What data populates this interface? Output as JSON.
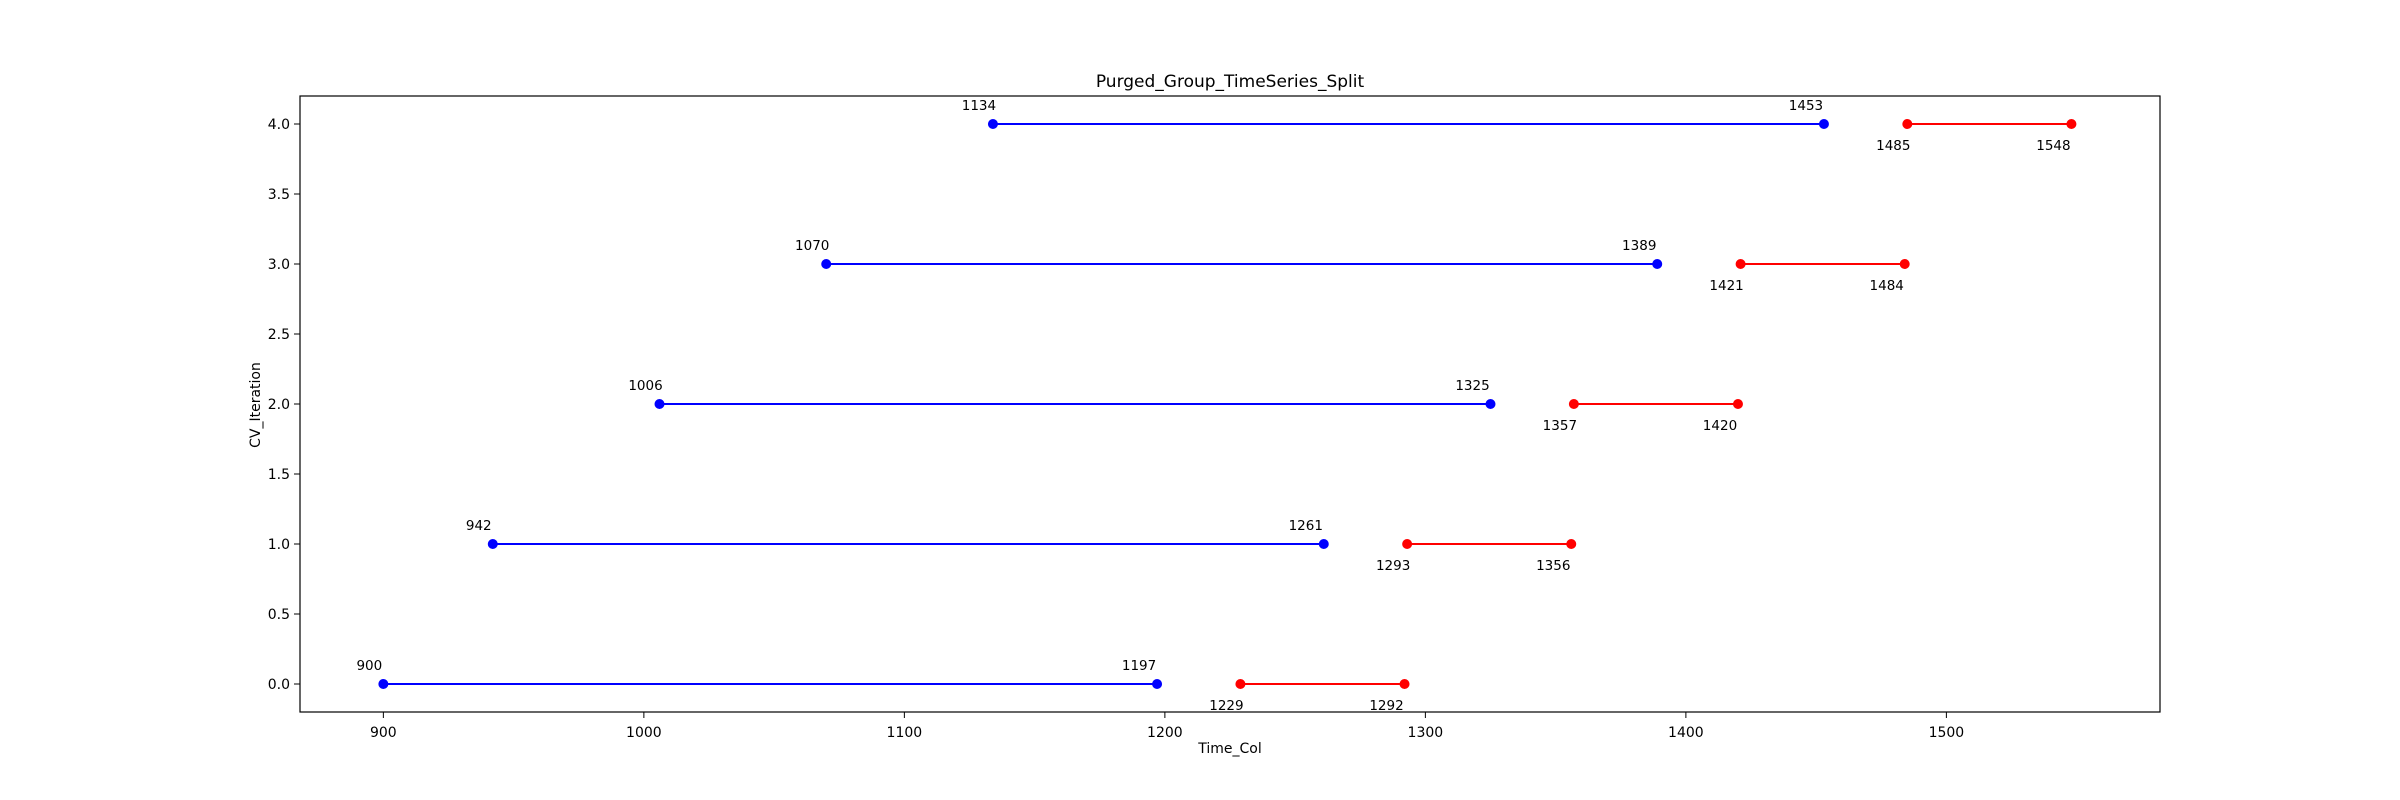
{
  "chart_data": {
    "type": "line",
    "title": "Purged_Group_TimeSeries_Split",
    "xlabel": "Time_Col",
    "ylabel": "CV_Iteration",
    "xlim": [
      868,
      1582
    ],
    "ylim": [
      -0.2,
      4.2
    ],
    "xticks": [
      "900",
      "1000",
      "1100",
      "1200",
      "1300",
      "1400",
      "1500"
    ],
    "yticks": [
      "0.0",
      "0.5",
      "1.0",
      "1.5",
      "2.0",
      "2.5",
      "3.0",
      "3.5",
      "4.0"
    ],
    "grid": false,
    "colors": {
      "train": "#0000ff",
      "test": "#ff0000"
    },
    "series": [
      {
        "kind": "train",
        "segments": [
          {
            "y": 0,
            "start": 900,
            "end": 1197
          },
          {
            "y": 1,
            "start": 942,
            "end": 1261
          },
          {
            "y": 2,
            "start": 1006,
            "end": 1325
          },
          {
            "y": 3,
            "start": 1070,
            "end": 1389
          },
          {
            "y": 4,
            "start": 1134,
            "end": 1453
          }
        ]
      },
      {
        "kind": "test",
        "segments": [
          {
            "y": 0,
            "start": 1229,
            "end": 1292
          },
          {
            "y": 1,
            "start": 1293,
            "end": 1356
          },
          {
            "y": 2,
            "start": 1357,
            "end": 1420
          },
          {
            "y": 3,
            "start": 1421,
            "end": 1484
          },
          {
            "y": 4,
            "start": 1485,
            "end": 1548
          }
        ]
      }
    ]
  }
}
